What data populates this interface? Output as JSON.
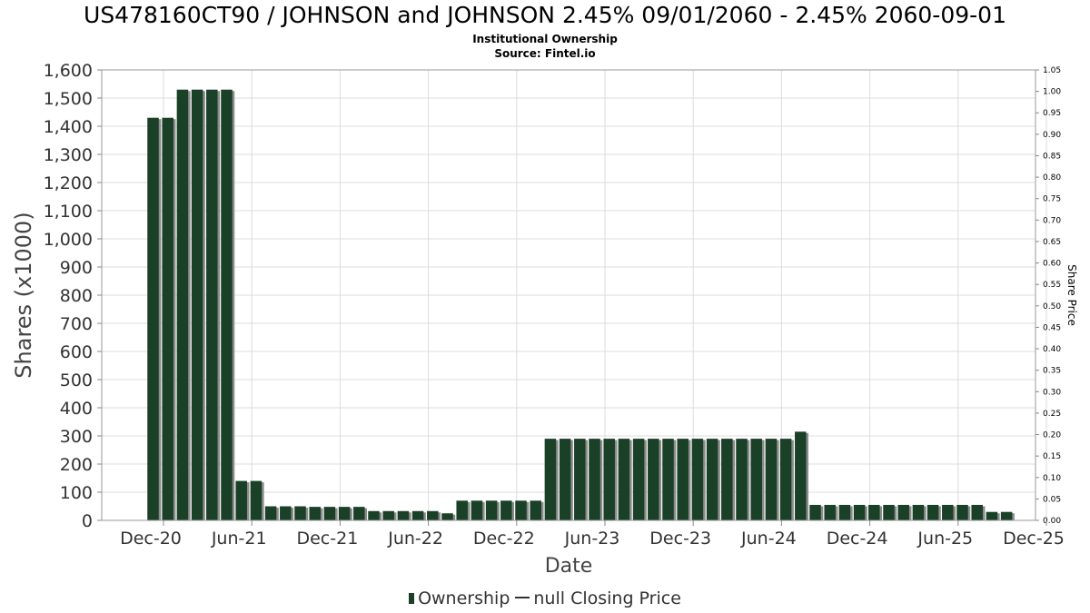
{
  "title": "US478160CT90 / JOHNSON and JOHNSON 2.45% 09/01/2060 - 2.45% 2060-09-01",
  "subtitle": "Institutional Ownership",
  "source": "Source: Fintel.io",
  "legend": {
    "ownership": "Ownership",
    "price": "null Closing Price"
  },
  "colors": {
    "bar": "#1a4027",
    "bar_shadow": "#8c8c8c",
    "grid": "#dcdcdc",
    "axis": "#888888"
  },
  "chart_data": {
    "type": "bar",
    "title": "US478160CT90 / JOHNSON and JOHNSON 2.45% 09/01/2060 - 2.45% 2060-09-01",
    "xlabel": "Date",
    "ylabel": "Shares (x1000)",
    "y2label": "Share Price",
    "ylim": [
      0,
      1600
    ],
    "y2lim": [
      0,
      1.05
    ],
    "yticks": [
      0,
      100,
      200,
      300,
      400,
      500,
      600,
      700,
      800,
      900,
      1000,
      1100,
      1200,
      1300,
      1400,
      1500,
      1600
    ],
    "yticklabels": [
      "0",
      "100",
      "200",
      "300",
      "400",
      "500",
      "600",
      "700",
      "800",
      "900",
      "1,000",
      "1,100",
      "1,200",
      "1,300",
      "1,400",
      "1,500",
      "1,600"
    ],
    "y2ticklabels": [
      "0.00",
      "0.05",
      "0.10",
      "0.15",
      "0.20",
      "0.25",
      "0.30",
      "0.35",
      "0.40",
      "0.45",
      "0.50",
      "0.55",
      "0.60",
      "0.65",
      "0.70",
      "0.75",
      "0.80",
      "0.85",
      "0.90",
      "0.95",
      "1.00",
      "1.05"
    ],
    "xticklabels": [
      "Dec-20",
      "Jun-21",
      "Dec-21",
      "Jun-22",
      "Dec-22",
      "Jun-23",
      "Dec-23",
      "Jun-24",
      "Dec-24",
      "Jun-25",
      "Dec-25"
    ],
    "grid": true,
    "legend_position": "bottom",
    "series": [
      {
        "name": "Ownership",
        "values": [
          1430,
          1430,
          1530,
          1530,
          1530,
          1530,
          140,
          140,
          50,
          50,
          50,
          48,
          48,
          48,
          48,
          33,
          33,
          33,
          33,
          33,
          25,
          70,
          70,
          70,
          70,
          70,
          70,
          290,
          290,
          290,
          290,
          290,
          290,
          290,
          290,
          290,
          290,
          290,
          290,
          290,
          290,
          290,
          290,
          290,
          315,
          55,
          55,
          55,
          55,
          55,
          55,
          55,
          55,
          55,
          55,
          55,
          55,
          30,
          30
        ]
      },
      {
        "name": "null Closing Price",
        "values": []
      }
    ]
  }
}
